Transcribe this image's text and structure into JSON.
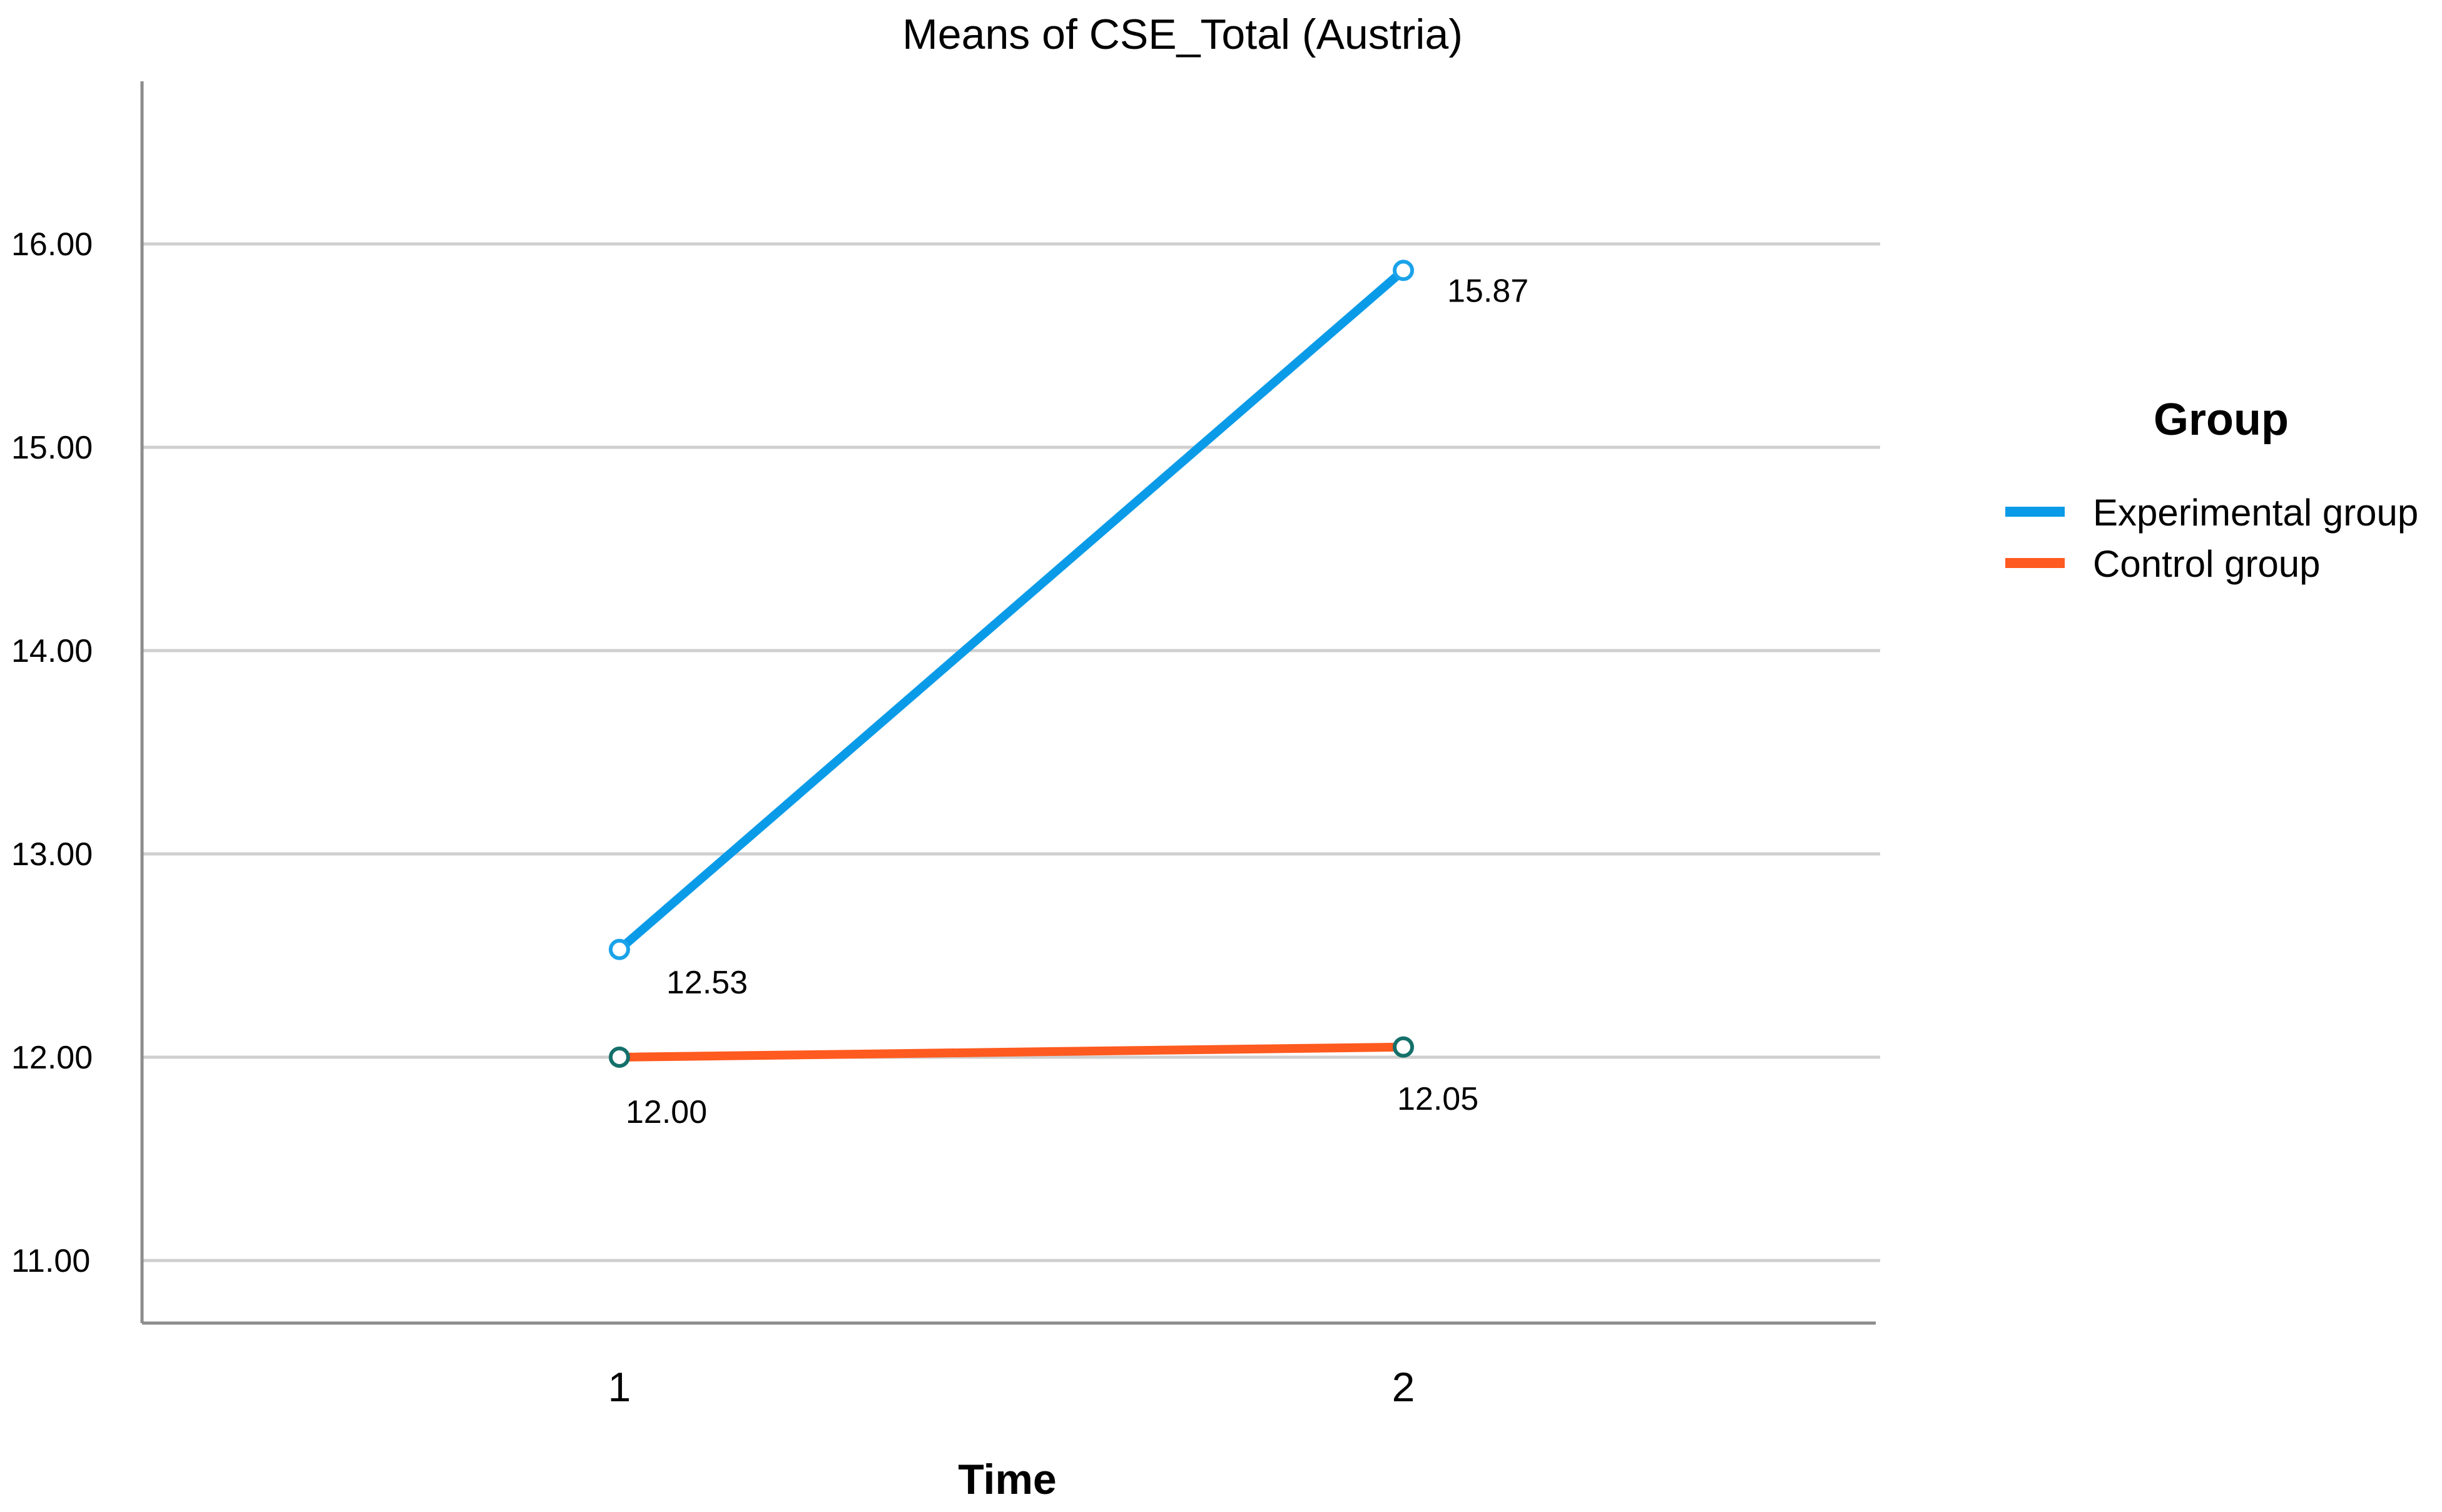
{
  "chart_data": {
    "type": "line",
    "title": "Means of CSE_Total (Austria)",
    "xlabel": "Time",
    "ylabel": "",
    "categories": [
      "1",
      "2"
    ],
    "ylim": [
      10.7,
      16.8
    ],
    "yticks": [
      11,
      12,
      13,
      14,
      15,
      16
    ],
    "ytick_labels": [
      "11.00",
      "12.00",
      "13.00",
      "14.00",
      "15.00",
      "16.00"
    ],
    "grid": "horizontal",
    "legend": {
      "title": "Group",
      "placement": "right"
    },
    "series": [
      {
        "name": "Experimental group",
        "color": "#0a9be8",
        "values": [
          12.53,
          15.87
        ],
        "labels": [
          "12.53",
          "15.87"
        ]
      },
      {
        "name": "Control group",
        "color": "#ff5a1f",
        "values": [
          12.0,
          12.05
        ],
        "labels": [
          "12.00",
          "12.05"
        ]
      }
    ]
  }
}
